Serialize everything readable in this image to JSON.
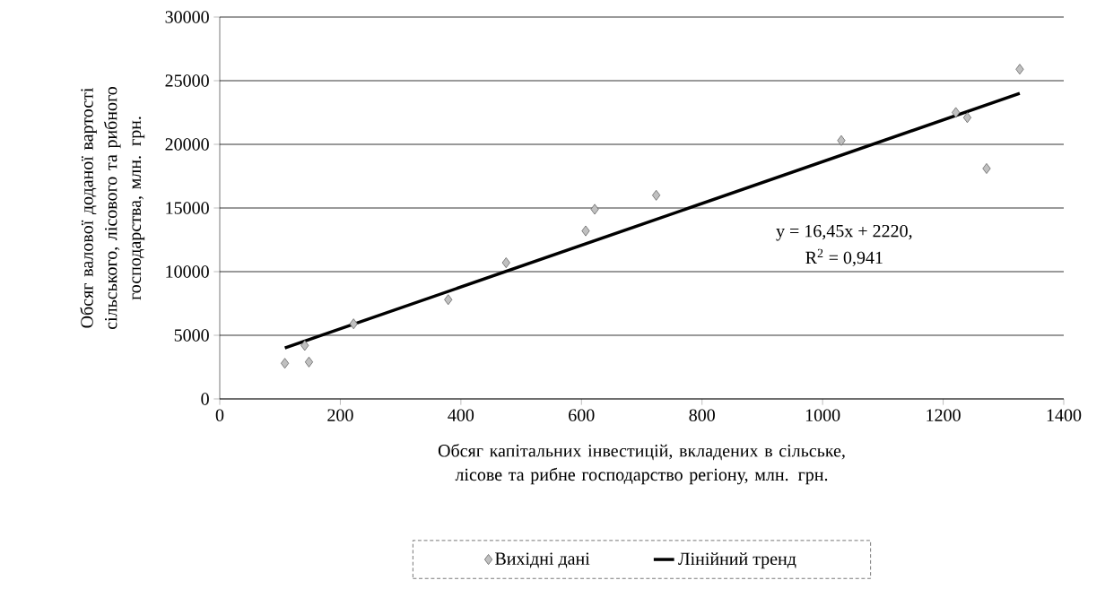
{
  "chart_data": {
    "type": "scatter",
    "xlabel": "Обсяг капітальних інвестицій, вкладених в сільське, лісове та рибне господарство регіону, млн. грн.",
    "ylabel": "Обсяг валової доданої вартості сільського, лісового та рибного господарства, млн. грн.",
    "annotations": [
      "y = 16,45x + 2220,",
      "R$^{2}$ = 0,941"
    ],
    "series": [
      {
        "name": "Вихідні дані",
        "color": "#c0c0c0",
        "marker": "diamond",
        "x": [
          108,
          141,
          148,
          222,
          379,
          475,
          607,
          622,
          724,
          1031,
          1221,
          1240,
          1272,
          1327
        ],
        "values": [
          2800,
          4200,
          2900,
          5900,
          7800,
          10700,
          13200,
          14900,
          16000,
          20300,
          22500,
          22100,
          18100,
          25900
        ]
      },
      {
        "name": "Лінійний тренд",
        "type": "line",
        "color": "#000000",
        "marker": "none",
        "line_style": "solid",
        "x": [
          108,
          1327
        ],
        "values": [
          4000,
          24000
        ]
      }
    ],
    "xlim": [
      0,
      1400
    ],
    "ylim": [
      0,
      30000
    ],
    "xticks": [
      0,
      200,
      400,
      600,
      800,
      1000,
      1200,
      1400
    ],
    "yticks": [
      0,
      5000,
      10000,
      15000,
      20000,
      25000,
      30000
    ],
    "grid": "y",
    "legend": "bottom"
  }
}
